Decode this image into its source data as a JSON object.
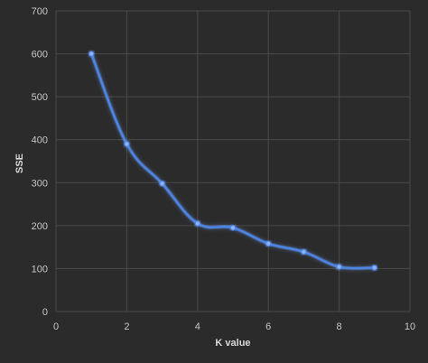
{
  "chart_data": {
    "type": "scatter",
    "title": "",
    "xlabel": "K value",
    "ylabel": "SSE",
    "xlim": [
      0,
      10
    ],
    "ylim": [
      0,
      700
    ],
    "xticks": [
      0,
      2,
      4,
      6,
      8,
      10
    ],
    "yticks": [
      0,
      100,
      200,
      300,
      400,
      500,
      600,
      700
    ],
    "grid": "vertical-and-horizontal",
    "line_style": "smoothed line with markers",
    "series": [
      {
        "x": [
          1,
          2,
          3,
          4,
          5,
          6,
          7,
          8,
          9
        ],
        "y": [
          600,
          390,
          298,
          205,
          195,
          158,
          139,
          104,
          102
        ]
      }
    ],
    "colors": {
      "background": "#2b2b2b",
      "grid": "#4a4a4a",
      "line": "#4a86e8",
      "glow": "#6fa0ff",
      "marker": "#8fb4ff"
    }
  }
}
